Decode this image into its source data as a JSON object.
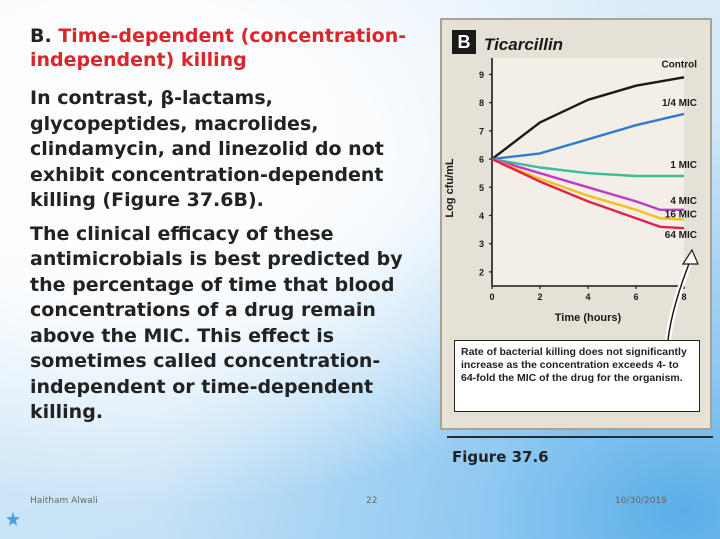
{
  "slide": {
    "heading_prefix": "B. ",
    "heading_red": "Time-dependent (concentration-independent) killing",
    "paragraphs": [
      "In contrast, β-lactams, glycopeptides, macrolides, clindamycin, and linezolid do not exhibit concentration-dependent killing (Figure 37.6B).",
      "The clinical efficacy of these antimicrobials is best predicted by the percentage of time that blood concentrations of a drug remain above the MIC. This effect is sometimes called concentration-independent or time-dependent killing."
    ],
    "footer": {
      "author": "Haitham Alwali",
      "page": "22",
      "date": "10/30/2019"
    }
  },
  "figure": {
    "panel_letter": "B",
    "caption": "Figure 37.6",
    "callout": "Rate of bacterial killing does not significantly increase as the concentration exceeds 4- to 64-fold the MIC of the drug for the organism."
  },
  "chart_data": {
    "type": "line",
    "title": "Ticarcillin",
    "xlabel": "Time (hours)",
    "ylabel": "Log cfu/mL",
    "xlim": [
      0,
      8
    ],
    "ylim": [
      1.5,
      9.3
    ],
    "xticks": [
      0,
      2,
      4,
      6,
      8
    ],
    "yticks": [
      2,
      3,
      4,
      5,
      6,
      7,
      8,
      9
    ],
    "series": [
      {
        "name": "Control",
        "color": "#1a1a1a",
        "x": [
          0,
          2,
          4,
          6,
          8
        ],
        "y": [
          6,
          7.3,
          8.1,
          8.6,
          8.9
        ]
      },
      {
        "name": "1/4 MIC",
        "color": "#2f7bd0",
        "x": [
          0,
          2,
          4,
          6,
          8
        ],
        "y": [
          6,
          6.2,
          6.7,
          7.2,
          7.6
        ]
      },
      {
        "name": "1 MIC",
        "color": "#3dbb9a",
        "x": [
          0,
          2,
          4,
          6,
          8
        ],
        "y": [
          6,
          5.7,
          5.5,
          5.4,
          5.4
        ]
      },
      {
        "name": "4 MIC",
        "color": "#c03ac8",
        "x": [
          0,
          2,
          4,
          6,
          7,
          8
        ],
        "y": [
          6,
          5.5,
          5.0,
          4.5,
          4.2,
          4.2
        ]
      },
      {
        "name": "16 MIC",
        "color": "#f2c21b",
        "x": [
          0,
          2,
          4,
          6,
          7,
          8
        ],
        "y": [
          6,
          5.3,
          4.7,
          4.2,
          3.9,
          3.85
        ]
      },
      {
        "name": "64 MIC",
        "color": "#e01f4c",
        "x": [
          0,
          2,
          4,
          6,
          7,
          8
        ],
        "y": [
          6,
          5.2,
          4.5,
          3.9,
          3.6,
          3.55
        ]
      }
    ]
  }
}
